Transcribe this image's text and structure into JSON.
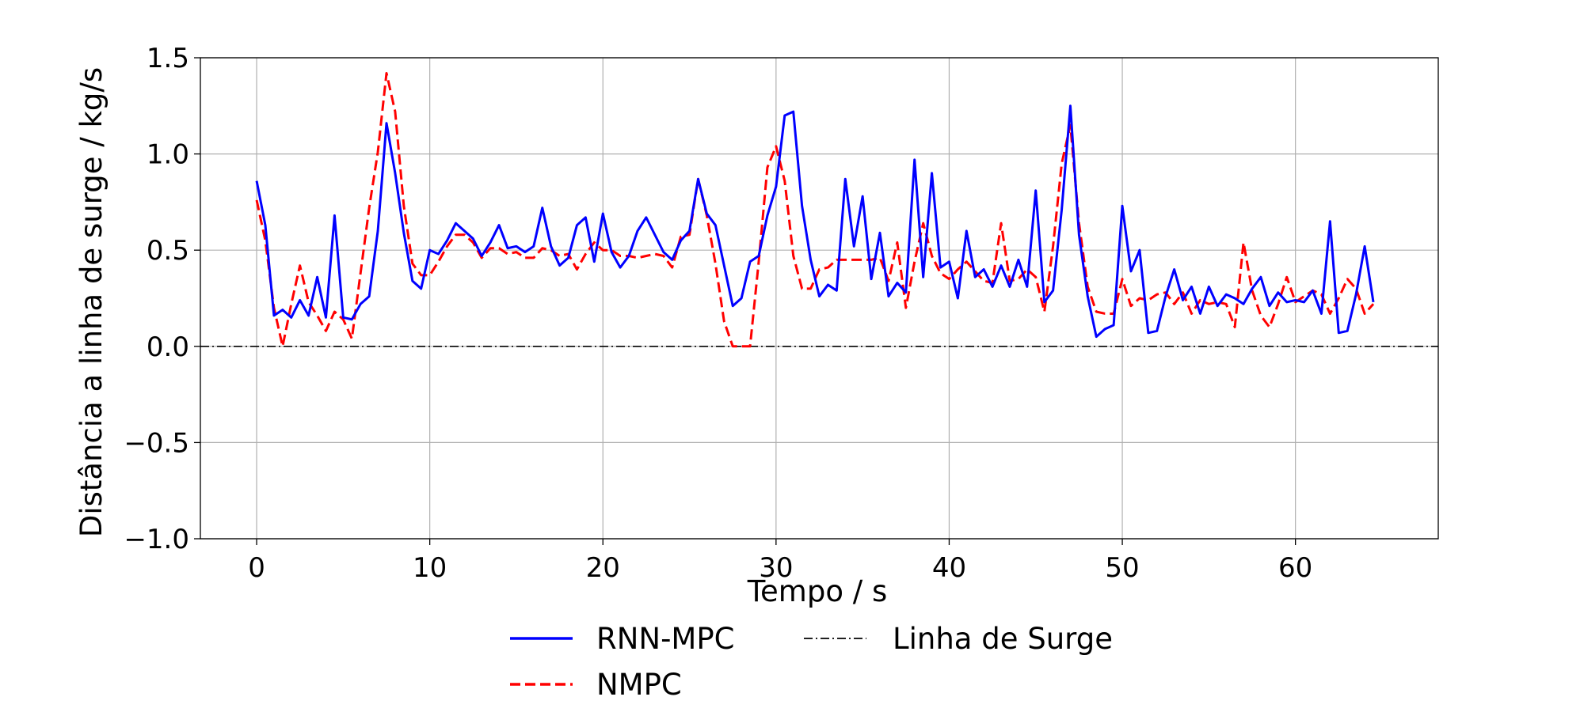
{
  "chart_data": {
    "type": "line",
    "title": "",
    "xlabel": "Tempo / s",
    "ylabel": "Distância a linha de surge / kg/s",
    "xlim": [
      -3.25,
      68.25
    ],
    "ylim": [
      -1.0,
      1.5
    ],
    "x_ticks": [
      0,
      10,
      20,
      30,
      40,
      50,
      60
    ],
    "y_ticks": [
      1.5,
      1.0,
      0.5,
      0.0,
      -0.5,
      -1.0
    ],
    "x_tick_labels": [
      "0",
      "10",
      "20",
      "30",
      "40",
      "50",
      "60"
    ],
    "y_tick_labels": [
      "1.5",
      "1.0",
      "0.5",
      "0.0",
      "−0.5",
      "−1.0"
    ],
    "grid": true,
    "legend_position": "bottom-center",
    "series": [
      {
        "name": "RNN-MPC",
        "color": "#0000ff",
        "dash": "solid",
        "points": [
          [
            0.0,
            0.86
          ],
          [
            0.5,
            0.63
          ],
          [
            1.0,
            0.16
          ],
          [
            1.5,
            0.19
          ],
          [
            2.0,
            0.15
          ],
          [
            2.5,
            0.24
          ],
          [
            3.0,
            0.16
          ],
          [
            3.5,
            0.36
          ],
          [
            4.0,
            0.15
          ],
          [
            4.5,
            0.68
          ],
          [
            5.0,
            0.15
          ],
          [
            5.5,
            0.14
          ],
          [
            6.0,
            0.22
          ],
          [
            6.5,
            0.26
          ],
          [
            7.0,
            0.6
          ],
          [
            7.5,
            1.16
          ],
          [
            8.0,
            0.9
          ],
          [
            8.5,
            0.59
          ],
          [
            9.0,
            0.34
          ],
          [
            9.5,
            0.3
          ],
          [
            10.0,
            0.5
          ],
          [
            10.5,
            0.48
          ],
          [
            11.0,
            0.55
          ],
          [
            11.5,
            0.64
          ],
          [
            12.0,
            0.6
          ],
          [
            12.5,
            0.56
          ],
          [
            13.0,
            0.47
          ],
          [
            13.5,
            0.54
          ],
          [
            14.0,
            0.63
          ],
          [
            14.5,
            0.51
          ],
          [
            15.0,
            0.52
          ],
          [
            15.5,
            0.49
          ],
          [
            16.0,
            0.52
          ],
          [
            16.5,
            0.72
          ],
          [
            17.0,
            0.52
          ],
          [
            17.5,
            0.42
          ],
          [
            18.0,
            0.46
          ],
          [
            18.5,
            0.63
          ],
          [
            19.0,
            0.67
          ],
          [
            19.5,
            0.44
          ],
          [
            20.0,
            0.69
          ],
          [
            20.5,
            0.49
          ],
          [
            21.0,
            0.41
          ],
          [
            21.5,
            0.47
          ],
          [
            22.0,
            0.6
          ],
          [
            22.5,
            0.67
          ],
          [
            23.0,
            0.58
          ],
          [
            23.5,
            0.49
          ],
          [
            24.0,
            0.45
          ],
          [
            24.5,
            0.55
          ],
          [
            25.0,
            0.6
          ],
          [
            25.5,
            0.87
          ],
          [
            26.0,
            0.69
          ],
          [
            26.5,
            0.63
          ],
          [
            27.0,
            0.42
          ],
          [
            27.5,
            0.21
          ],
          [
            28.0,
            0.25
          ],
          [
            28.5,
            0.44
          ],
          [
            29.0,
            0.47
          ],
          [
            29.5,
            0.68
          ],
          [
            30.0,
            0.83
          ],
          [
            30.5,
            1.2
          ],
          [
            31.0,
            1.22
          ],
          [
            31.5,
            0.73
          ],
          [
            32.0,
            0.45
          ],
          [
            32.5,
            0.26
          ],
          [
            33.0,
            0.32
          ],
          [
            33.5,
            0.29
          ],
          [
            34.0,
            0.87
          ],
          [
            34.5,
            0.52
          ],
          [
            35.0,
            0.78
          ],
          [
            35.5,
            0.35
          ],
          [
            36.0,
            0.59
          ],
          [
            36.5,
            0.26
          ],
          [
            37.0,
            0.33
          ],
          [
            37.5,
            0.28
          ],
          [
            38.0,
            0.97
          ],
          [
            38.5,
            0.36
          ],
          [
            39.0,
            0.9
          ],
          [
            39.5,
            0.41
          ],
          [
            40.0,
            0.44
          ],
          [
            40.5,
            0.25
          ],
          [
            41.0,
            0.6
          ],
          [
            41.5,
            0.36
          ],
          [
            42.0,
            0.4
          ],
          [
            42.5,
            0.31
          ],
          [
            43.0,
            0.42
          ],
          [
            43.5,
            0.31
          ],
          [
            44.0,
            0.45
          ],
          [
            44.5,
            0.31
          ],
          [
            45.0,
            0.81
          ],
          [
            45.5,
            0.23
          ],
          [
            46.0,
            0.29
          ],
          [
            46.5,
            0.71
          ],
          [
            47.0,
            1.25
          ],
          [
            47.5,
            0.58
          ],
          [
            48.0,
            0.26
          ],
          [
            48.5,
            0.05
          ],
          [
            49.0,
            0.09
          ],
          [
            49.5,
            0.11
          ],
          [
            50.0,
            0.73
          ],
          [
            50.5,
            0.39
          ],
          [
            51.0,
            0.5
          ],
          [
            51.5,
            0.07
          ],
          [
            52.0,
            0.08
          ],
          [
            52.5,
            0.26
          ],
          [
            53.0,
            0.4
          ],
          [
            53.5,
            0.24
          ],
          [
            54.0,
            0.31
          ],
          [
            54.5,
            0.17
          ],
          [
            55.0,
            0.31
          ],
          [
            55.5,
            0.21
          ],
          [
            56.0,
            0.27
          ],
          [
            56.5,
            0.25
          ],
          [
            57.0,
            0.22
          ],
          [
            57.5,
            0.3
          ],
          [
            58.0,
            0.36
          ],
          [
            58.5,
            0.21
          ],
          [
            59.0,
            0.28
          ],
          [
            59.5,
            0.23
          ],
          [
            60.0,
            0.24
          ],
          [
            60.5,
            0.23
          ],
          [
            61.0,
            0.29
          ],
          [
            61.5,
            0.17
          ],
          [
            62.0,
            0.65
          ],
          [
            62.5,
            0.07
          ],
          [
            63.0,
            0.08
          ],
          [
            63.5,
            0.27
          ],
          [
            64.0,
            0.52
          ],
          [
            64.5,
            0.23
          ]
        ]
      },
      {
        "name": "NMPC",
        "color": "#ff0000",
        "dash": "dashed",
        "points": [
          [
            0.0,
            0.76
          ],
          [
            0.5,
            0.55
          ],
          [
            1.0,
            0.2
          ],
          [
            1.5,
            0.0
          ],
          [
            2.0,
            0.22
          ],
          [
            2.5,
            0.42
          ],
          [
            3.0,
            0.23
          ],
          [
            3.5,
            0.16
          ],
          [
            4.0,
            0.08
          ],
          [
            4.5,
            0.18
          ],
          [
            5.0,
            0.14
          ],
          [
            5.5,
            0.04
          ],
          [
            6.0,
            0.38
          ],
          [
            6.5,
            0.72
          ],
          [
            7.0,
            1.01
          ],
          [
            7.5,
            1.42
          ],
          [
            8.0,
            1.22
          ],
          [
            8.5,
            0.73
          ],
          [
            9.0,
            0.43
          ],
          [
            9.5,
            0.37
          ],
          [
            10.0,
            0.37
          ],
          [
            10.5,
            0.44
          ],
          [
            11.0,
            0.52
          ],
          [
            11.5,
            0.58
          ],
          [
            12.0,
            0.58
          ],
          [
            12.5,
            0.54
          ],
          [
            13.0,
            0.46
          ],
          [
            13.5,
            0.51
          ],
          [
            14.0,
            0.51
          ],
          [
            14.5,
            0.48
          ],
          [
            15.0,
            0.49
          ],
          [
            15.5,
            0.46
          ],
          [
            16.0,
            0.46
          ],
          [
            16.5,
            0.51
          ],
          [
            17.0,
            0.5
          ],
          [
            17.5,
            0.47
          ],
          [
            18.0,
            0.48
          ],
          [
            18.5,
            0.4
          ],
          [
            19.0,
            0.48
          ],
          [
            19.5,
            0.54
          ],
          [
            20.0,
            0.5
          ],
          [
            20.5,
            0.5
          ],
          [
            21.0,
            0.47
          ],
          [
            21.5,
            0.47
          ],
          [
            22.0,
            0.46
          ],
          [
            22.5,
            0.47
          ],
          [
            23.0,
            0.48
          ],
          [
            23.5,
            0.47
          ],
          [
            24.0,
            0.41
          ],
          [
            24.5,
            0.57
          ],
          [
            25.0,
            0.58
          ],
          [
            25.5,
            0.87
          ],
          [
            26.0,
            0.68
          ],
          [
            26.5,
            0.43
          ],
          [
            27.0,
            0.13
          ],
          [
            27.5,
            0.0
          ],
          [
            28.0,
            0.0
          ],
          [
            28.5,
            0.0
          ],
          [
            29.0,
            0.44
          ],
          [
            29.5,
            0.93
          ],
          [
            30.0,
            1.04
          ],
          [
            30.5,
            0.86
          ],
          [
            31.0,
            0.47
          ],
          [
            31.5,
            0.3
          ],
          [
            32.0,
            0.3
          ],
          [
            32.5,
            0.4
          ],
          [
            33.0,
            0.41
          ],
          [
            33.5,
            0.45
          ],
          [
            34.0,
            0.45
          ],
          [
            34.5,
            0.45
          ],
          [
            35.0,
            0.45
          ],
          [
            35.5,
            0.45
          ],
          [
            36.0,
            0.46
          ],
          [
            36.5,
            0.34
          ],
          [
            37.0,
            0.54
          ],
          [
            37.5,
            0.2
          ],
          [
            38.0,
            0.44
          ],
          [
            38.5,
            0.64
          ],
          [
            39.0,
            0.47
          ],
          [
            39.5,
            0.38
          ],
          [
            40.0,
            0.35
          ],
          [
            40.5,
            0.4
          ],
          [
            41.0,
            0.44
          ],
          [
            41.5,
            0.39
          ],
          [
            42.0,
            0.34
          ],
          [
            42.5,
            0.33
          ],
          [
            43.0,
            0.64
          ],
          [
            43.5,
            0.34
          ],
          [
            44.0,
            0.35
          ],
          [
            44.5,
            0.4
          ],
          [
            45.0,
            0.36
          ],
          [
            45.5,
            0.18
          ],
          [
            46.0,
            0.52
          ],
          [
            46.5,
            0.95
          ],
          [
            47.0,
            1.15
          ],
          [
            47.5,
            0.64
          ],
          [
            48.0,
            0.31
          ],
          [
            48.5,
            0.18
          ],
          [
            49.0,
            0.17
          ],
          [
            49.5,
            0.17
          ],
          [
            50.0,
            0.35
          ],
          [
            50.5,
            0.21
          ],
          [
            51.0,
            0.25
          ],
          [
            51.5,
            0.24
          ],
          [
            52.0,
            0.27
          ],
          [
            52.5,
            0.28
          ],
          [
            53.0,
            0.22
          ],
          [
            53.5,
            0.28
          ],
          [
            54.0,
            0.17
          ],
          [
            54.5,
            0.24
          ],
          [
            55.0,
            0.22
          ],
          [
            55.5,
            0.23
          ],
          [
            56.0,
            0.22
          ],
          [
            56.5,
            0.1
          ],
          [
            57.0,
            0.54
          ],
          [
            57.5,
            0.29
          ],
          [
            58.0,
            0.16
          ],
          [
            58.5,
            0.1
          ],
          [
            59.0,
            0.22
          ],
          [
            59.5,
            0.36
          ],
          [
            60.0,
            0.23
          ],
          [
            60.5,
            0.26
          ],
          [
            61.0,
            0.29
          ],
          [
            61.5,
            0.27
          ],
          [
            62.0,
            0.17
          ],
          [
            62.5,
            0.25
          ],
          [
            63.0,
            0.35
          ],
          [
            63.5,
            0.3
          ],
          [
            64.0,
            0.17
          ],
          [
            64.5,
            0.22
          ]
        ]
      },
      {
        "name": "Linha de Surge",
        "color": "#000000",
        "dash": "dashdot",
        "points": [
          [
            -3.25,
            0.0
          ],
          [
            68.25,
            0.0
          ]
        ]
      }
    ]
  }
}
